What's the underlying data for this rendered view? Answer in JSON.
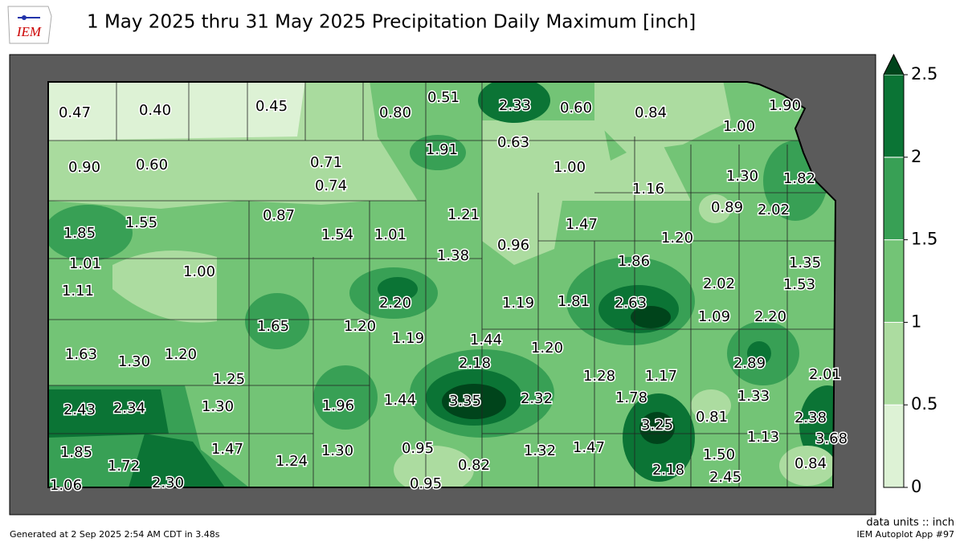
{
  "header": {
    "logo": "IEM",
    "title": "1 May 2025 thru 31 May 2025 Precipitation Daily Maximum [inch]"
  },
  "map": {
    "labels": [
      "0.47",
      "0.40",
      "0.45",
      "0.80",
      "0.51",
      "2.33",
      "0.60",
      "0.84",
      "1.90",
      "1.00",
      "0.90",
      "0.60",
      "0.71",
      "0.74",
      "1.91",
      "0.63",
      "1.00",
      "1.30",
      "1.82",
      "1.16",
      "0.89",
      "2.02",
      "1.85",
      "1.55",
      "0.87",
      "1.54",
      "1.01",
      "1.21",
      "1.47",
      "1.20",
      "1.38",
      "0.96",
      "1.86",
      "1.35",
      "1.01",
      "1.00",
      "2.02",
      "1.53",
      "1.11",
      "2.20",
      "1.19",
      "1.81",
      "2.63",
      "1.09",
      "2.20",
      "1.65",
      "1.20",
      "1.19",
      "1.44",
      "1.20",
      "1.63",
      "1.30",
      "1.20",
      "2.18",
      "2.89",
      "2.01",
      "1.25",
      "1.28",
      "1.17",
      "1.33",
      "2.43",
      "2.34",
      "1.30",
      "1.96",
      "1.44",
      "3.35",
      "2.32",
      "1.78",
      "0.81",
      "2.38",
      "3.25",
      "1.13",
      "3.68",
      "1.85",
      "1.72",
      "1.47",
      "1.24",
      "1.30",
      "0.95",
      "0.82",
      "1.32",
      "1.47",
      "1.50",
      "0.84",
      "2.18",
      "2.45",
      "1.06",
      "2.30",
      "0.95"
    ]
  },
  "colorbar": {
    "ticks": [
      0,
      0.5,
      1,
      1.5,
      2,
      2.5
    ],
    "colors": [
      "#ddf2d5",
      "#acdca0",
      "#73c476",
      "#38a055",
      "#0b7435"
    ],
    "extend_color": "#00441b"
  },
  "footer": {
    "units": "data units :: inch",
    "generated": "Generated at 2 Sep 2025 2:54 AM CDT in 3.48s",
    "app": "IEM Autoplot App #97"
  }
}
